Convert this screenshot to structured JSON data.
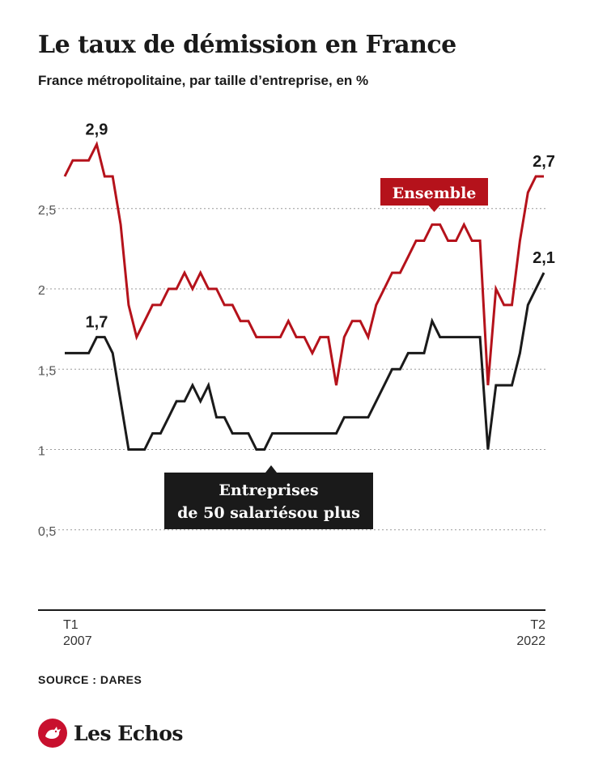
{
  "title": "Le taux de démission en France",
  "subtitle": "France métropolitaine, par taille d’entreprise, en %",
  "source": "SOURCE : DARES",
  "brand": "Les Echos",
  "colors": {
    "ensemble": "#b5121b",
    "entreprises": "#1a1a1a",
    "grid": "#9a9a9a",
    "brand": "#c8102e"
  },
  "chart_data": {
    "type": "line",
    "title": "Le taux de démission en France",
    "subtitle": "France métropolitaine, par taille d’entreprise, en %",
    "xlabel": "",
    "ylabel": "",
    "ylim": [
      0,
      3
    ],
    "y_ticks": [
      0.5,
      1,
      1.5,
      2,
      2.5
    ],
    "y_tick_labels": [
      "0,5",
      "1",
      "1,5",
      "2",
      "2,5"
    ],
    "x_start_label": [
      "T1",
      "2007"
    ],
    "x_end_label": [
      "T2",
      "2022"
    ],
    "series": [
      {
        "name": "Ensemble",
        "color": "#b5121b",
        "values": [
          2.7,
          2.8,
          2.8,
          2.8,
          2.9,
          2.7,
          2.7,
          2.4,
          1.9,
          1.7,
          1.8,
          1.9,
          1.9,
          2.0,
          2.0,
          2.1,
          2.0,
          2.1,
          2.0,
          2.0,
          1.9,
          1.9,
          1.8,
          1.8,
          1.7,
          1.7,
          1.7,
          1.7,
          1.8,
          1.7,
          1.7,
          1.6,
          1.7,
          1.7,
          1.4,
          1.7,
          1.8,
          1.8,
          1.7,
          1.9,
          2.0,
          2.1,
          2.1,
          2.2,
          2.3,
          2.3,
          2.4,
          2.4,
          2.3,
          2.3,
          2.4,
          2.3,
          2.3,
          1.4,
          2.0,
          1.9,
          1.9,
          2.3,
          2.6,
          2.7,
          2.7
        ]
      },
      {
        "name": "Entreprises de 50 salariésou plus",
        "color": "#1a1a1a",
        "values": [
          1.6,
          1.6,
          1.6,
          1.6,
          1.7,
          1.7,
          1.6,
          1.3,
          1.0,
          1.0,
          1.0,
          1.1,
          1.1,
          1.2,
          1.3,
          1.3,
          1.4,
          1.3,
          1.4,
          1.2,
          1.2,
          1.1,
          1.1,
          1.1,
          1.0,
          1.0,
          1.1,
          1.1,
          1.1,
          1.1,
          1.1,
          1.1,
          1.1,
          1.1,
          1.1,
          1.2,
          1.2,
          1.2,
          1.2,
          1.3,
          1.4,
          1.5,
          1.5,
          1.6,
          1.6,
          1.6,
          1.8,
          1.7,
          1.7,
          1.7,
          1.7,
          1.7,
          1.7,
          1.0,
          1.4,
          1.4,
          1.4,
          1.6,
          1.9,
          2.0,
          2.1
        ]
      }
    ],
    "annotations": [
      {
        "series": 0,
        "point": 4,
        "text": "2,9",
        "position": "above"
      },
      {
        "series": 0,
        "point": 60,
        "text": "2,7",
        "position": "above"
      },
      {
        "series": 1,
        "point": 4,
        "text": "1,7",
        "position": "above"
      },
      {
        "series": 1,
        "point": 60,
        "text": "2,1",
        "position": "above"
      }
    ],
    "legend_labels": [
      {
        "series": 0,
        "lines": [
          "Ensemble"
        ],
        "placement": "above-line-right",
        "style": "filled-box"
      },
      {
        "series": 1,
        "lines": [
          "Entreprises",
          "de 50 salariésou plus"
        ],
        "placement": "below-line-center",
        "style": "filled-box"
      }
    ]
  }
}
